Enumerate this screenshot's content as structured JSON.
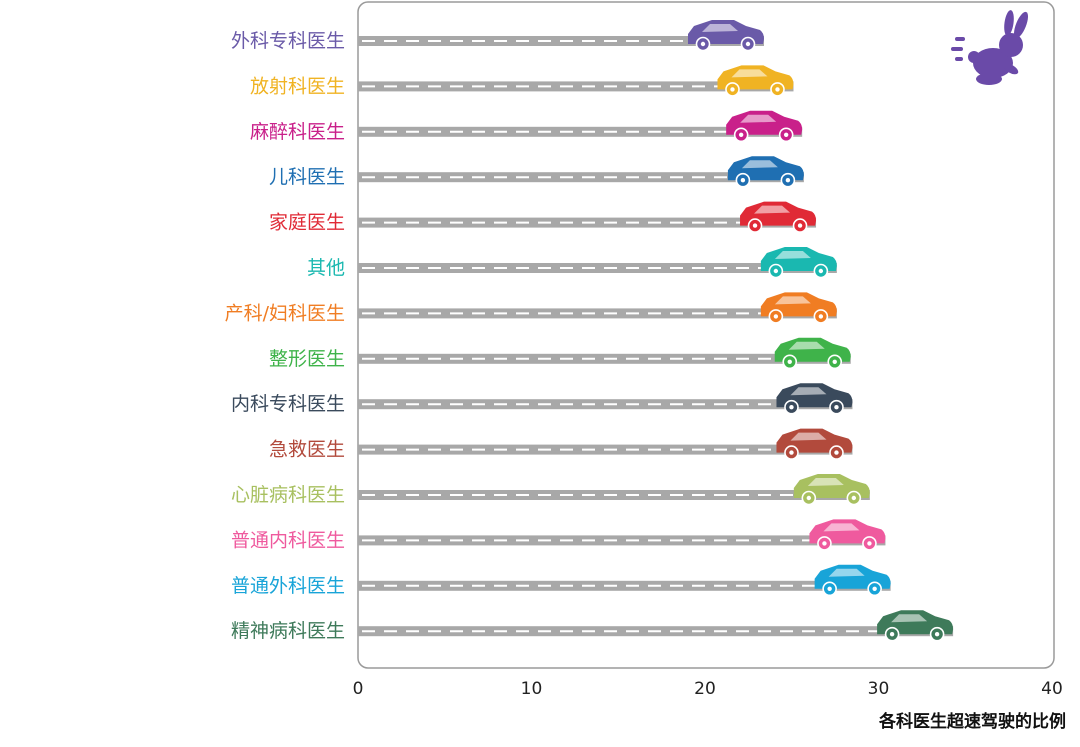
{
  "chart_data": {
    "type": "bar",
    "title": "",
    "xlabel": "各科医生超速驾驶的比例",
    "ylabel": "",
    "xlim": [
      0,
      40
    ],
    "x_ticks": [
      0,
      10,
      20,
      30,
      40
    ],
    "grid": false,
    "orientation": "horizontal",
    "categories": [
      "外科专科医生",
      "放射科医生",
      "麻醉科医生",
      "儿科医生",
      "家庭医生",
      "其他",
      "产科/妇科医生",
      "整形医生",
      "内科专科医生",
      "急救医生",
      "心脏病科医生",
      "普通内科医生",
      "普通外科医生",
      "精神病科医生"
    ],
    "values": [
      23.4,
      25.1,
      25.6,
      25.7,
      26.4,
      27.6,
      27.6,
      28.4,
      28.5,
      28.5,
      29.5,
      30.4,
      30.7,
      34.3
    ],
    "colors": [
      "#6a5aa8",
      "#f0b323",
      "#c9208a",
      "#1f6fb2",
      "#e02a36",
      "#1ab8b0",
      "#f07d23",
      "#3fb34a",
      "#3a4a5c",
      "#b24a3c",
      "#a8c060",
      "#ef5a9e",
      "#18a4d8",
      "#3e7a5a"
    ],
    "bar_style": "gray road with white dashed center line, car icon at bar end",
    "badge_icon": "rabbit-icon",
    "badge_color": "#6a4aa8"
  }
}
